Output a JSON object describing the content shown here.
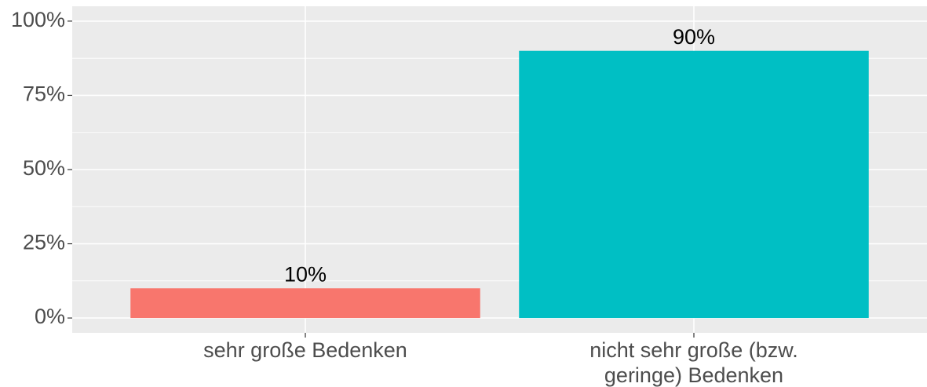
{
  "chart_data": {
    "type": "bar",
    "categories": [
      "sehr große Bedenken",
      "nicht sehr große (bzw. geringe) Bedenken"
    ],
    "values": [
      10,
      90
    ],
    "value_labels": [
      "10%",
      "90%"
    ],
    "colors": [
      "#f8766d",
      "#00bfc4"
    ],
    "ylim": [
      -5,
      105
    ],
    "yticks": [
      {
        "value": 0,
        "label": "0%"
      },
      {
        "value": 25,
        "label": "25%"
      },
      {
        "value": 50,
        "label": "50%"
      },
      {
        "value": 75,
        "label": "75%"
      },
      {
        "value": 100,
        "label": "100%"
      }
    ],
    "grid": true
  }
}
